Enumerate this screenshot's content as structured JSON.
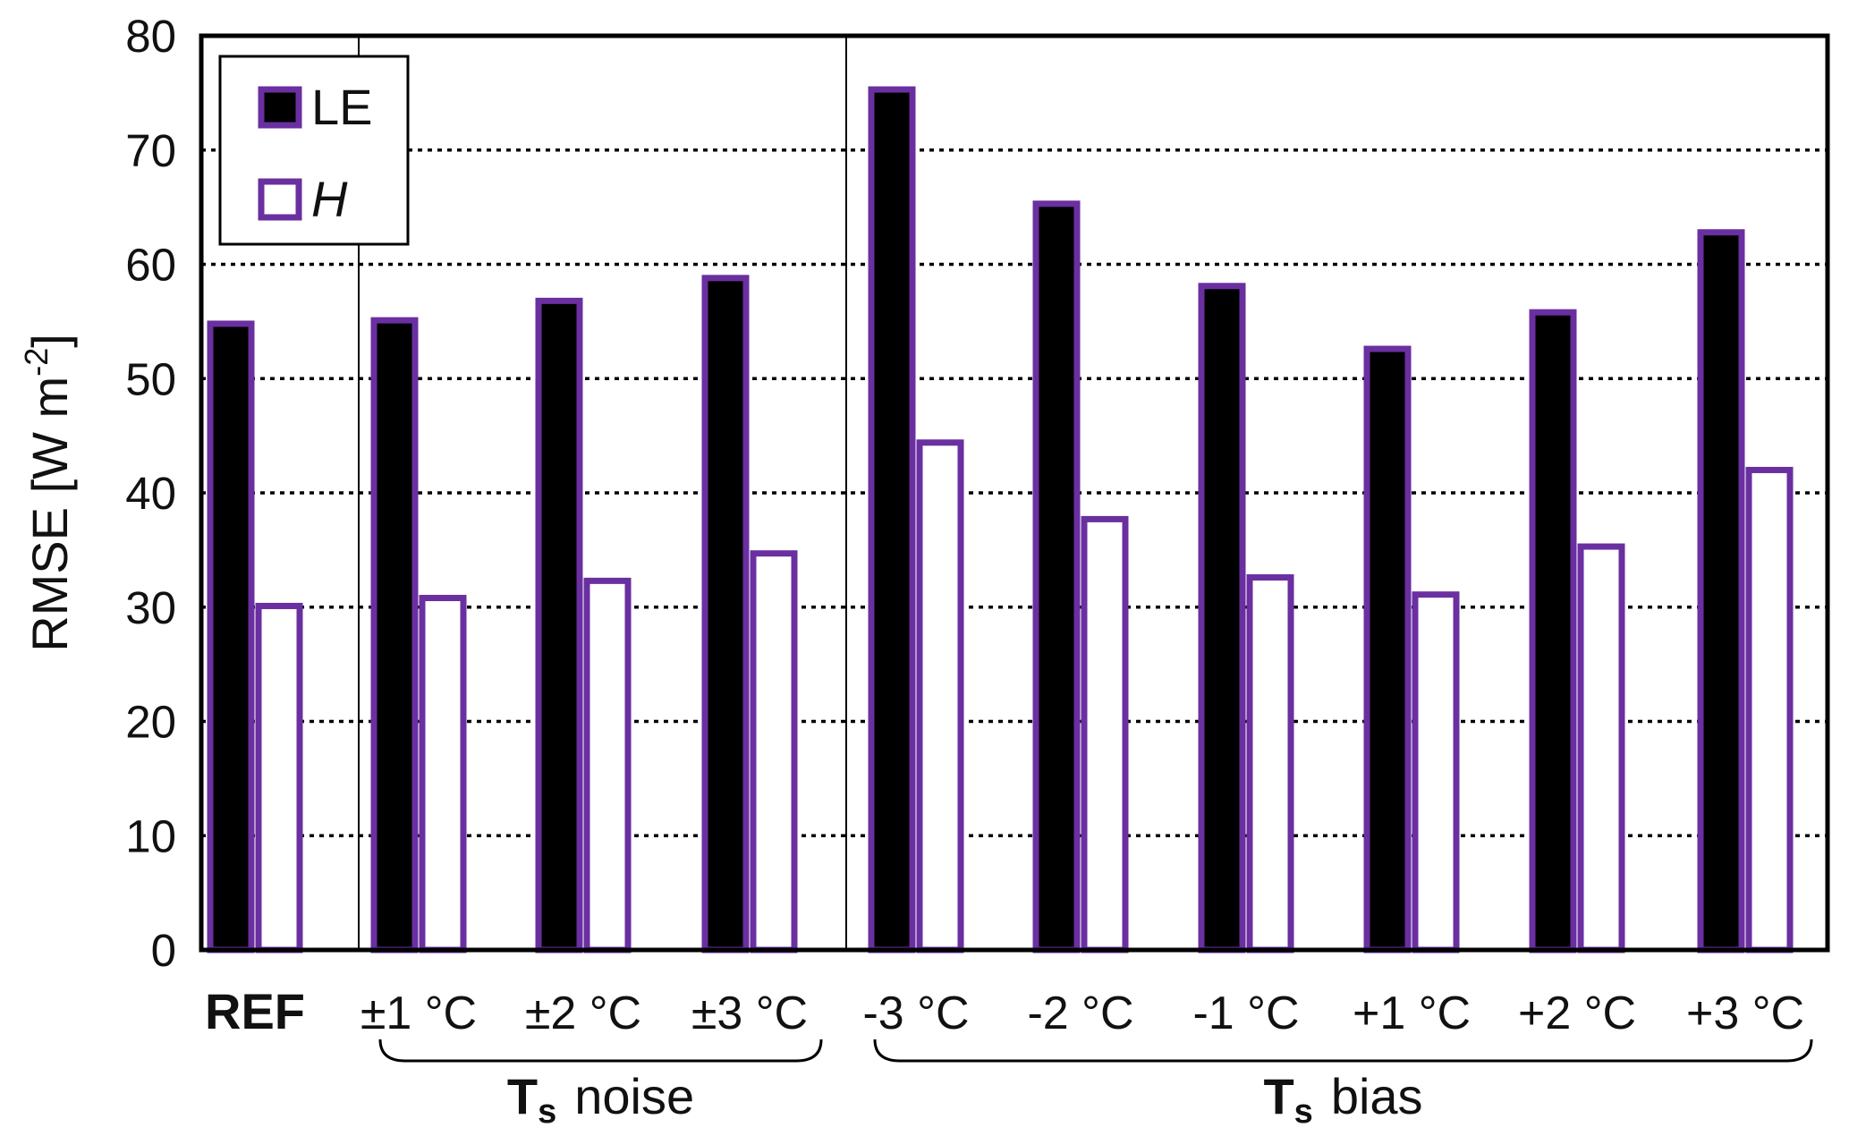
{
  "chart_data": {
    "type": "bar",
    "categories": [
      "REF",
      "±1 °C",
      "±2 °C",
      "±3 °C",
      "-3 °C",
      "-2 °C",
      "-1 °C",
      "+1 °C",
      "+2 °C",
      "+3 °C"
    ],
    "series": [
      {
        "name": "LE",
        "values": [
          54.8,
          55.1,
          56.8,
          58.8,
          75.3,
          65.3,
          58.1,
          52.6,
          55.8,
          62.8
        ],
        "fill": "#000000",
        "stroke": "#6a2fa0"
      },
      {
        "name": "H",
        "values": [
          30.1,
          30.8,
          32.3,
          34.7,
          44.4,
          37.7,
          32.6,
          31.1,
          35.3,
          42.0
        ],
        "fill": "#ffffff",
        "stroke": "#6a2fa0"
      }
    ],
    "ylabel": "RMSE [W m-2]",
    "ylabel_parts": {
      "main": "RMSE [W m",
      "sup": "-2",
      "close": "]"
    },
    "ylim": [
      0,
      80
    ],
    "yticks": [
      0,
      10,
      20,
      30,
      40,
      50,
      60,
      70,
      80
    ],
    "grid": "horizontal dotted",
    "legend": "top-left",
    "groups": [
      {
        "label_main": "T",
        "label_sub": "s",
        "label_rest": "noise",
        "categories": [
          "±1 °C",
          "±2 °C",
          "±3 °C"
        ]
      },
      {
        "label_main": "T",
        "label_sub": "s",
        "label_rest": "bias",
        "categories": [
          "-3 °C",
          "-2 °C",
          "-1 °C",
          "+1 °C",
          "+2 °C",
          "+3 °C"
        ]
      }
    ],
    "bold_categories": [
      "REF"
    ]
  }
}
